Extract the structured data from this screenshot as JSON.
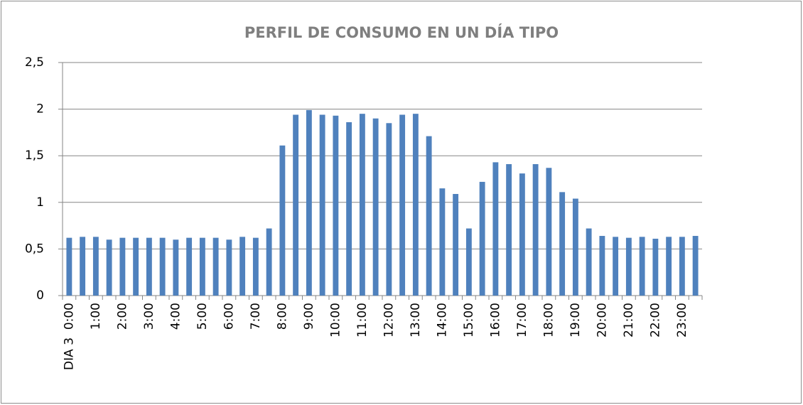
{
  "chart_data": {
    "type": "bar",
    "title": "PERFIL DE CONSUMO EN UN DÍA TIPO",
    "categories": [
      "DIA 3  0:00",
      null,
      "1:00",
      null,
      "2:00",
      null,
      "3:00",
      null,
      "4:00",
      null,
      "5:00",
      null,
      "6:00",
      null,
      "7:00",
      null,
      "8:00",
      null,
      "9:00",
      null,
      "10:00",
      null,
      "11:00",
      null,
      "12:00",
      null,
      "13:00",
      null,
      "14:00",
      null,
      "15:00",
      null,
      "16:00",
      null,
      "17:00",
      null,
      "18:00",
      null,
      "19:00",
      null,
      "20:00",
      null,
      "21:00",
      null,
      "22:00",
      null,
      "23:00",
      null
    ],
    "values": [
      0.62,
      0.63,
      0.63,
      0.6,
      0.62,
      0.62,
      0.62,
      0.62,
      0.6,
      0.62,
      0.62,
      0.62,
      0.6,
      0.63,
      0.62,
      0.72,
      1.61,
      1.94,
      1.99,
      1.94,
      1.93,
      1.86,
      1.95,
      1.9,
      1.85,
      1.94,
      1.95,
      1.71,
      1.15,
      1.09,
      0.72,
      1.22,
      1.43,
      1.41,
      1.31,
      1.41,
      1.37,
      1.11,
      1.04,
      0.72,
      0.64,
      0.63,
      0.62,
      0.63,
      0.61,
      0.63,
      0.63,
      0.64
    ],
    "color": "#4f81bd",
    "ylim": [
      0,
      2.5
    ],
    "yticks": [
      0,
      {
        "value": 0.5,
        "label": "0,5"
      },
      1,
      {
        "value": 1.5,
        "label": "1,5"
      },
      2,
      {
        "value": 2.5,
        "label": "2,5"
      }
    ],
    "grid": true
  }
}
